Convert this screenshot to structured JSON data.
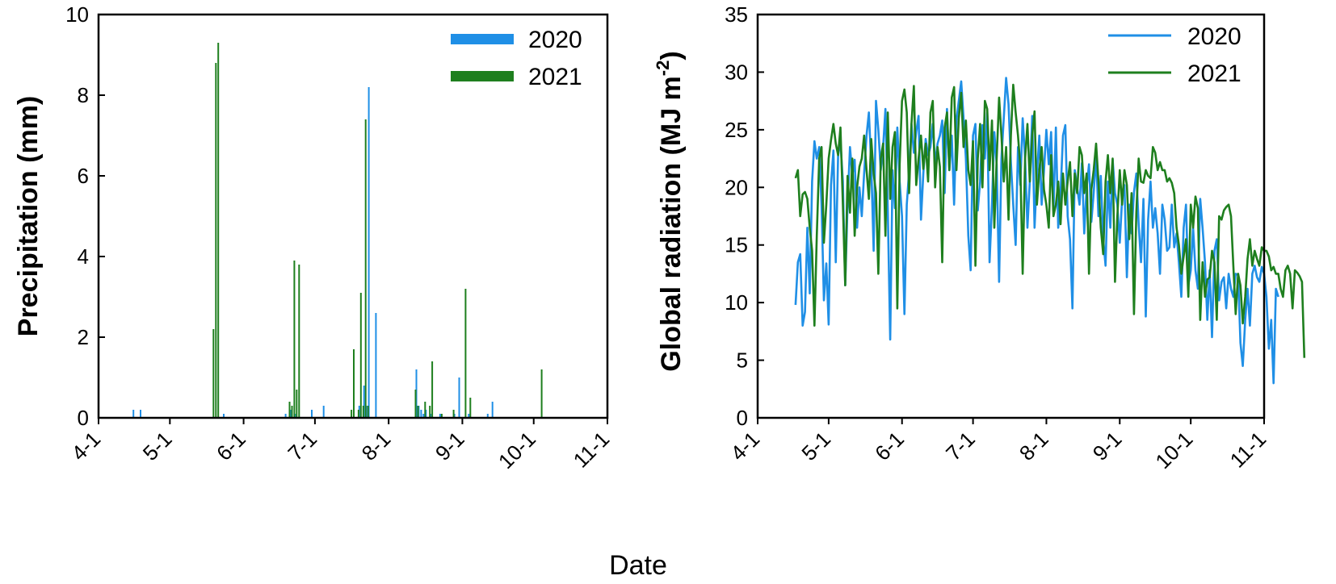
{
  "colors": {
    "2020": "#1f8fe6",
    "2021": "#1e7f1e"
  },
  "shared_xlabel": "Date",
  "chart_data": [
    {
      "type": "bar",
      "ylabel": "Precipitation (mm)",
      "ylim": [
        0,
        10
      ],
      "yticks": [
        "0",
        "2",
        "4",
        "6",
        "8",
        "10"
      ],
      "xtick_labels": [
        "4-1",
        "5-1",
        "6-1",
        "7-1",
        "8-1",
        "9-1",
        "10-1",
        "11-1"
      ],
      "grid": false,
      "legend": "top-right",
      "series": [
        {
          "name": "2020",
          "color": "#1f8fe6",
          "x": [
            "4-16",
            "4-19",
            "5-24",
            "6-19",
            "6-21",
            "6-23",
            "6-30",
            "7-5",
            "7-20",
            "7-22",
            "7-23",
            "7-24",
            "7-27",
            "8-13",
            "8-14",
            "8-15",
            "8-16",
            "8-17",
            "8-19",
            "8-23",
            "8-29",
            "8-31",
            "9-4",
            "9-12",
            "9-14"
          ],
          "values": [
            0.2,
            0.2,
            0.1,
            0.1,
            0.2,
            0.1,
            0.2,
            0.3,
            0.3,
            0.8,
            0.3,
            8.2,
            2.6,
            1.2,
            0.3,
            0.2,
            0.1,
            0.2,
            0.1,
            0.1,
            0.1,
            1.0,
            0.1,
            0.1,
            0.4
          ]
        },
        {
          "name": "2021",
          "color": "#1e7f1e",
          "x": [
            "5-19",
            "5-20",
            "5-21",
            "6-20",
            "6-21",
            "6-22",
            "6-23",
            "6-24",
            "7-16",
            "7-17",
            "7-19",
            "7-20",
            "7-21",
            "7-22",
            "7-23",
            "8-12",
            "8-13",
            "8-16",
            "8-18",
            "8-19",
            "8-23",
            "8-28",
            "9-2",
            "9-4",
            "10-4"
          ],
          "values": [
            2.2,
            8.8,
            9.3,
            0.4,
            0.3,
            3.9,
            0.7,
            3.8,
            0.2,
            1.7,
            0.2,
            3.1,
            0.3,
            7.4,
            0.3,
            0.7,
            0.3,
            0.4,
            0.3,
            1.4,
            0.1,
            0.2,
            3.2,
            0.5,
            1.2
          ]
        }
      ]
    },
    {
      "type": "line",
      "ylabel": "Global radiation (MJ m",
      "ylabel_superscript": "-2",
      "ylabel_close": ")",
      "ylim": [
        0,
        35
      ],
      "yticks": [
        "0",
        "5",
        "10",
        "15",
        "20",
        "25",
        "30",
        "35"
      ],
      "xtick_labels": [
        "4-1",
        "5-1",
        "6-1",
        "7-1",
        "8-1",
        "9-1",
        "10-1",
        "11-1"
      ],
      "grid": false,
      "legend": "top-right",
      "series": [
        {
          "name": "2020",
          "color": "#1f8fe6",
          "x_start": "4-17",
          "values": [
            9.8,
            13.5,
            14.2,
            8,
            9.2,
            16.5,
            10.8,
            20.5,
            24,
            22.5,
            23.5,
            18.5,
            10.2,
            13.4,
            8.1,
            20.2,
            23.2,
            13.5,
            22.8,
            24,
            20.5,
            11.5,
            18.5,
            23.5,
            21,
            22.4,
            16.5,
            20,
            17.5,
            21.2,
            24.5,
            26.5,
            22,
            14.5,
            27.5,
            25,
            21.5,
            23.5,
            26.8,
            18,
            6.8,
            21.5,
            18.2,
            25.2,
            20.5,
            17.5,
            9,
            18.5,
            21.4,
            25.5,
            23,
            24.8,
            26.2,
            17.2,
            21.2,
            24.2,
            22.8,
            23.5,
            25.5,
            22,
            23.8,
            24.5,
            25.8,
            19.5,
            26.8,
            21.5,
            24.5,
            18.5,
            25.8,
            27.5,
            29.2,
            26,
            22.5,
            15.8,
            12.8,
            24.5,
            25.5,
            18,
            20.5,
            25.4,
            22.5,
            26.5,
            13.5,
            18.5,
            24.8,
            22,
            11.8,
            22.5,
            26,
            29.5,
            27.2,
            22.2,
            18.5,
            15,
            23.5,
            20.2,
            26,
            22.5,
            16.5,
            20.5,
            26.2,
            16.5,
            21,
            24.5,
            18.5,
            21.5,
            25,
            22,
            24.8,
            18,
            25.2,
            16.5,
            19.5,
            24.5,
            25.4,
            17.5,
            15.5,
            9.5,
            21.5,
            20,
            18.5,
            22.1,
            16,
            20,
            22,
            17,
            19.5,
            22.8,
            17.5,
            21,
            15.5,
            13.2,
            20.5,
            16.5,
            22.4,
            19.5,
            18.5,
            15.2,
            19,
            20.2,
            12.2,
            18.5,
            16,
            19.6,
            21.2,
            16.8,
            13.5,
            19,
            8.8,
            17.2,
            20.5,
            16.5,
            18.2,
            16,
            12.5,
            18.5,
            17.2,
            14.5,
            14.8,
            18.5,
            14.8,
            16,
            13.5,
            10.5,
            16.5,
            18.5,
            11.5,
            12.8,
            16.5,
            12.8,
            11.2,
            19,
            16.5,
            13.5,
            8.5,
            12.8,
            7,
            14.5,
            15.5,
            10.2,
            11.8,
            12.2,
            9.5,
            12.5,
            11.2,
            10.5,
            12.5,
            12.4,
            6.5,
            4.5,
            8.5,
            11.2,
            8,
            12.5,
            13.2,
            12.2,
            11.8,
            13.1,
            12.5,
            10.5,
            6,
            8.5,
            3,
            11.2,
            10.5
          ]
        },
        {
          "name": "2021",
          "color": "#1e7f1e",
          "x_start": "4-17",
          "values": [
            20.8,
            21.5,
            17.5,
            19.4,
            19.6,
            19,
            16.5,
            14.5,
            8,
            15.8,
            22.5,
            23.5,
            15.2,
            18.5,
            22.5,
            24.1,
            25.5,
            23.8,
            22.8,
            25.2,
            18.5,
            11.5,
            21,
            17.8,
            22.5,
            15.8,
            20,
            21.8,
            22.5,
            24.5,
            21.5,
            19,
            24.2,
            21.2,
            19.5,
            12.5,
            22.5,
            23.8,
            15.8,
            26.5,
            19,
            23.5,
            24.8,
            9.5,
            22,
            27.5,
            28.5,
            26.5,
            19.5,
            25.5,
            28.8,
            20.2,
            22.5,
            24.5,
            21.6,
            23.8,
            20.5,
            26.5,
            27.5,
            20,
            23.5,
            21.8,
            13.5,
            25.2,
            26.5,
            21.5,
            27.8,
            28.7,
            21.5,
            26,
            28.2,
            23.5,
            25.8,
            21.5,
            20.2,
            24,
            13.2,
            22.5,
            25.5,
            20,
            27.5,
            26.8,
            21.5,
            25.8,
            16.5,
            22.5,
            27.8,
            24.5,
            20.5,
            23.5,
            17.2,
            24.5,
            28.9,
            26.5,
            24.5,
            21.8,
            12.5,
            22.5,
            25.5,
            20.5,
            24.5,
            26.6,
            18.5,
            21.5,
            23.5,
            19.8,
            18.5,
            16.5,
            22.8,
            17.5,
            18.5,
            20.5,
            16.8,
            21.2,
            18.5,
            20.5,
            22.2,
            17.5,
            21.2,
            19.5,
            23.5,
            22.8,
            19.5,
            21.2,
            12.5,
            19.8,
            21.5,
            23.8,
            20.5,
            16.5,
            14.2,
            20.5,
            22.8,
            19.5,
            22.5,
            11.8,
            17.5,
            21.5,
            18.5,
            21.5,
            20.2,
            15.5,
            19.5,
            9,
            17.8,
            22.5,
            20.5,
            20.4,
            21.5,
            21,
            20.8,
            23.5,
            23,
            21.5,
            22.2,
            21.5,
            21.5,
            20.5,
            20.8,
            20.4,
            19.5,
            16.5,
            15,
            12.5,
            14,
            15.5,
            10.5,
            18.5,
            16.5,
            19.2,
            18.2,
            8.5,
            13.5,
            10.5,
            12,
            12.2,
            14.5,
            13.5,
            8.5,
            17.5,
            17.2,
            18,
            18.3,
            18.5,
            17.5,
            13.2,
            9,
            12.5,
            11.5,
            8.2,
            10.5,
            13.8,
            15.5,
            13.2,
            14.5,
            13.8,
            13.2,
            14.8,
            14.5,
            14.5,
            14,
            12.8,
            13.1,
            12.5,
            12.5,
            11.2,
            10.5,
            12.8,
            13.2,
            12.5,
            9.5,
            12.8,
            12.6,
            12.3,
            11.8,
            5.2
          ]
        }
      ]
    }
  ]
}
